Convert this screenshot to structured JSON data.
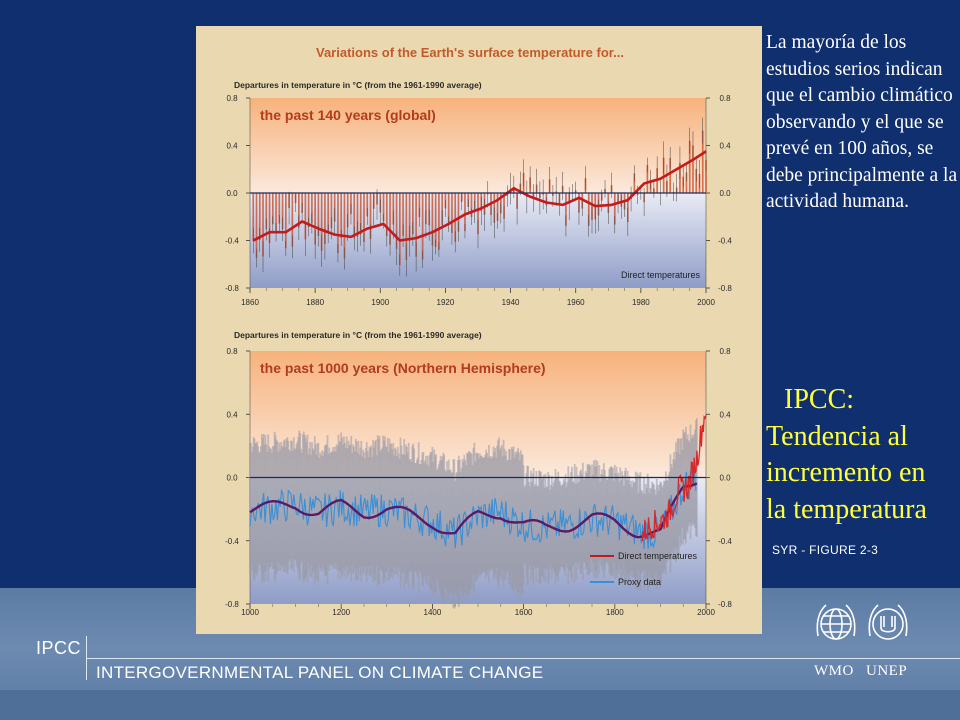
{
  "footer": {
    "abbr": "IPCC",
    "full_name": "INTERGOVERNMENTAL PANEL ON CLIMATE CHANGE",
    "logos": [
      {
        "label": "WMO",
        "icon": "wmo-globe-icon"
      },
      {
        "label": "UNEP",
        "icon": "unep-emblem-icon"
      }
    ]
  },
  "side_text": "La mayoría de los estudios serios indican que el cambio climático observando y el que se prevé en 100 años, se debe principalmente a la actividad humana.",
  "heading": {
    "line1": "IPCC:",
    "line2": "Tendencia al",
    "line3": "incremento en",
    "line4": "la temperatura",
    "color": "#ffff3c"
  },
  "figure_label": "SYR - FIGURE 2-3",
  "chart_data": [
    {
      "type": "bar",
      "title": "Variations of the Earth's surface temperature for...",
      "ylabel": "Departures in temperature in °C (from the 1961-1990 average)",
      "panel_title": "the past 140 years (global)",
      "ylim": [
        -0.8,
        0.8
      ],
      "yticks": [
        "0.8",
        "0.4",
        "0.0",
        "-0.4",
        "-0.8"
      ],
      "xticks": [
        "1860",
        "1880",
        "1900",
        "1920",
        "1940",
        "1960",
        "1980",
        "2000"
      ],
      "xlim": [
        1860,
        2000
      ],
      "legend": "Direct temperatures",
      "series": [
        {
          "name": "Direct temperatures",
          "x": [
            1861,
            1866,
            1871,
            1876,
            1881,
            1886,
            1891,
            1896,
            1901,
            1906,
            1911,
            1916,
            1921,
            1926,
            1931,
            1936,
            1941,
            1946,
            1951,
            1956,
            1961,
            1966,
            1971,
            1976,
            1981,
            1986,
            1991,
            1996,
            2000
          ],
          "values": [
            -0.4,
            -0.33,
            -0.33,
            -0.24,
            -0.3,
            -0.35,
            -0.37,
            -0.3,
            -0.26,
            -0.4,
            -0.38,
            -0.33,
            -0.26,
            -0.18,
            -0.13,
            -0.06,
            0.04,
            -0.03,
            -0.08,
            -0.1,
            -0.04,
            -0.11,
            -0.1,
            -0.06,
            0.08,
            0.12,
            0.2,
            0.28,
            0.35
          ]
        }
      ]
    },
    {
      "type": "line",
      "ylabel": "Departures in temperature in °C (from the 1961-1990 average)",
      "panel_title": "the past 1000 years (Northern Hemisphere)",
      "ylim": [
        -0.8,
        0.8
      ],
      "yticks": [
        "0.8",
        "0.4",
        "0.0",
        "-0.4",
        "-0.8"
      ],
      "xticks": [
        "1000",
        "1200",
        "1400",
        "1600",
        "1800",
        "2000"
      ],
      "xlim": [
        1000,
        2000
      ],
      "legend": [
        "Direct temperatures",
        "Proxy data"
      ],
      "series": [
        {
          "name": "Proxy data",
          "x": [
            1000,
            1050,
            1100,
            1150,
            1200,
            1250,
            1300,
            1350,
            1400,
            1450,
            1500,
            1550,
            1600,
            1650,
            1700,
            1750,
            1800,
            1850,
            1900,
            1950,
            1980
          ],
          "values": [
            -0.2,
            -0.19,
            -0.17,
            -0.22,
            -0.18,
            -0.22,
            -0.2,
            -0.24,
            -0.28,
            -0.36,
            -0.24,
            -0.22,
            -0.3,
            -0.32,
            -0.3,
            -0.26,
            -0.28,
            -0.34,
            -0.36,
            -0.06,
            0.0
          ]
        },
        {
          "name": "Direct temperatures",
          "x": [
            1860,
            1880,
            1900,
            1920,
            1940,
            1960,
            1980,
            2000
          ],
          "values": [
            -0.36,
            -0.3,
            -0.28,
            -0.22,
            -0.08,
            -0.06,
            0.12,
            0.45
          ]
        }
      ]
    }
  ]
}
